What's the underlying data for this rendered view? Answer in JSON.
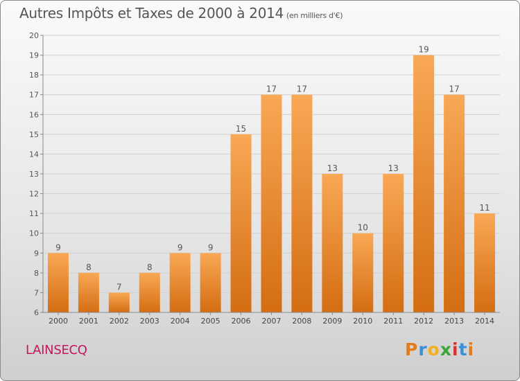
{
  "header": {
    "title": "Autres Impôts et Taxes de 2000 à 2014",
    "subtitle": "(en milliers d'€)"
  },
  "commune": "LAINSECQ",
  "logo": {
    "text": "Proxiti",
    "letters": [
      "P",
      "r",
      "o",
      "x",
      "i",
      "t",
      "i"
    ],
    "colors": [
      "#e07b1e",
      "#3a8fd6",
      "#f2b01e",
      "#3aa63a",
      "#d93030",
      "#3a8fd6",
      "#e07b1e"
    ]
  },
  "chart_data": {
    "type": "bar",
    "categories": [
      "2000",
      "2001",
      "2002",
      "2003",
      "2004",
      "2005",
      "2006",
      "2007",
      "2008",
      "2009",
      "2010",
      "2011",
      "2012",
      "2013",
      "2014"
    ],
    "values": [
      9,
      8,
      7,
      8,
      9,
      9,
      15,
      17,
      17,
      13,
      10,
      13,
      19,
      17,
      11
    ],
    "ylim": [
      6,
      20
    ],
    "yticks": [
      6,
      7,
      8,
      9,
      10,
      11,
      12,
      13,
      14,
      15,
      16,
      17,
      18,
      19,
      20
    ],
    "grid": true,
    "bar_color": "#f0922e",
    "bar_color_top": "#f9a855",
    "bar_color_bottom": "#d46d12"
  }
}
